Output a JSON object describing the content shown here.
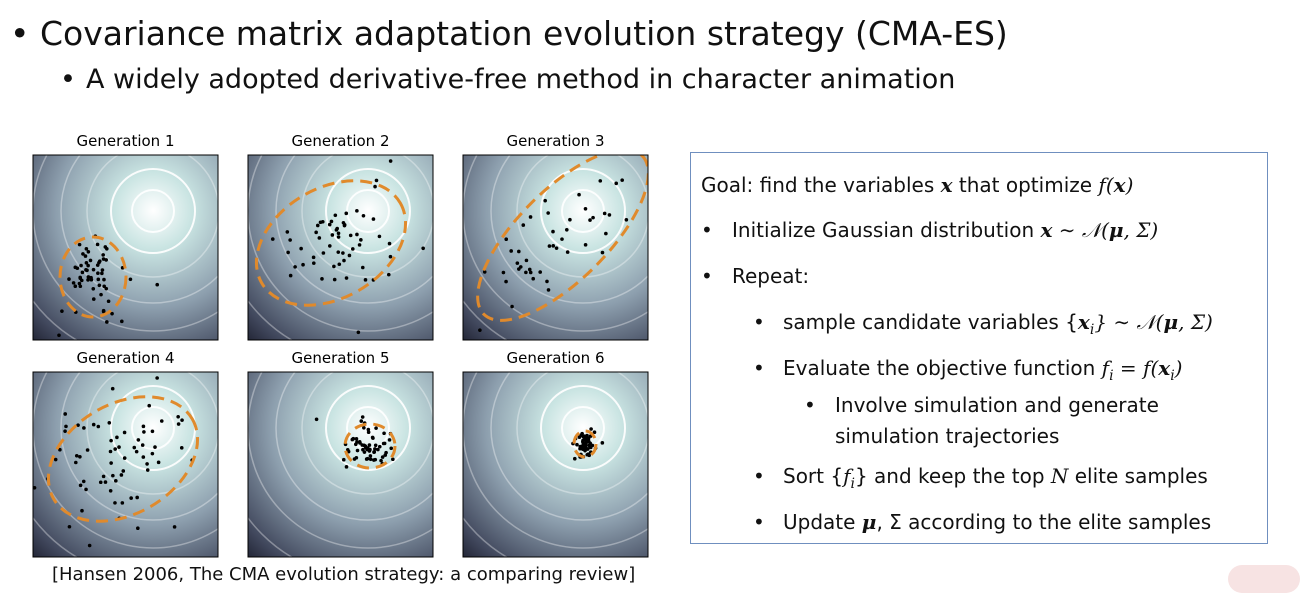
{
  "slide": {
    "title": "Covariance matrix adaptation evolution strategy (CMA-ES)",
    "subtitle": "A widely adopted derivative-free method in character animation",
    "figure": {
      "panels": [
        "Generation 1",
        "Generation 2",
        "Generation 3",
        "Generation 4",
        "Generation 5",
        "Generation 6"
      ],
      "citation": "[Hansen 2006, The CMA evolution strategy: a comparing review]"
    },
    "box": {
      "goal": [
        "Goal: find the variables ",
        "x",
        " that optimize ",
        "f",
        "(",
        "x",
        ")"
      ],
      "init": [
        "Initialize Gaussian distribution ",
        "x",
        " ∼ 𝒩(",
        "μ",
        ", Σ)"
      ],
      "repeat": "Repeat:",
      "sample": [
        "sample candidate variables {",
        "x",
        "i",
        "} ∼ 𝒩(",
        "μ",
        ", Σ)"
      ],
      "evaluate": [
        "Evaluate the objective function ",
        "f",
        "i",
        " = ",
        "f",
        "(",
        "x",
        "i",
        ")"
      ],
      "involve": [
        "Involve simulation and generate",
        "simulation trajectories"
      ],
      "sort": [
        "Sort {",
        "f",
        "i",
        "} and keep the top ",
        "N",
        " elite samples"
      ],
      "update": [
        "Update ",
        "μ",
        ", Σ according to the elite samples"
      ]
    }
  }
}
